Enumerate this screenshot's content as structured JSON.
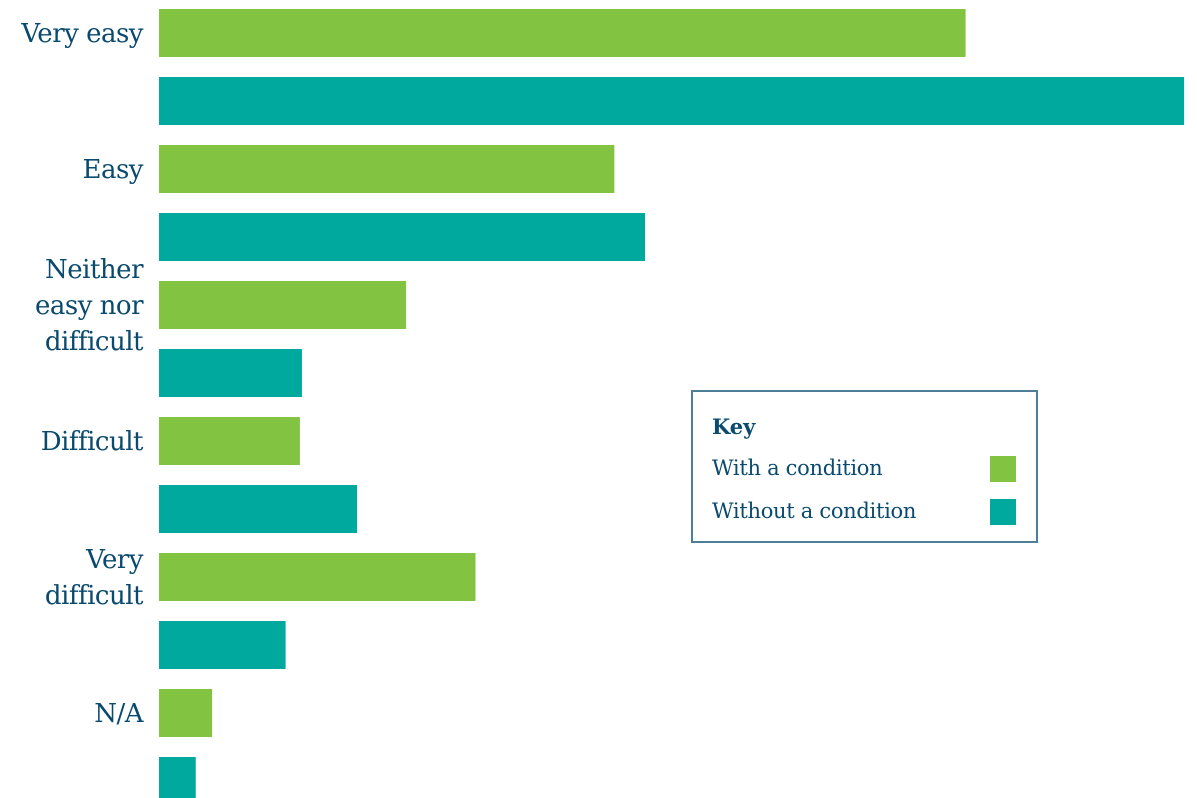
{
  "chart_data": {
    "type": "bar",
    "orientation": "horizontal",
    "categories": [
      "Very easy",
      "Easy",
      "Neither easy nor difficult",
      "Difficult",
      "Very difficult",
      "N/A"
    ],
    "category_label_lines": [
      [
        "Very easy"
      ],
      [
        "Easy"
      ],
      [
        "Neither",
        "easy nor",
        "difficult"
      ],
      [
        "Difficult"
      ],
      [
        "Very",
        "difficult"
      ],
      [
        "N/A"
      ]
    ],
    "series": [
      {
        "name": "With a condition",
        "color": "#82c341",
        "values": [
          39.5,
          22.3,
          12.1,
          6.9,
          15.5,
          2.6
        ]
      },
      {
        "name": "Without a condition",
        "color": "#00a99d",
        "values": [
          50.2,
          23.8,
          7.0,
          9.7,
          6.2,
          1.8
        ]
      }
    ],
    "xlim": [
      0,
      50
    ],
    "grid": false,
    "axis_visible": false,
    "legend": {
      "title": "Key",
      "placement": "center-right",
      "entries": [
        "With a condition",
        "Without a condition"
      ]
    }
  }
}
